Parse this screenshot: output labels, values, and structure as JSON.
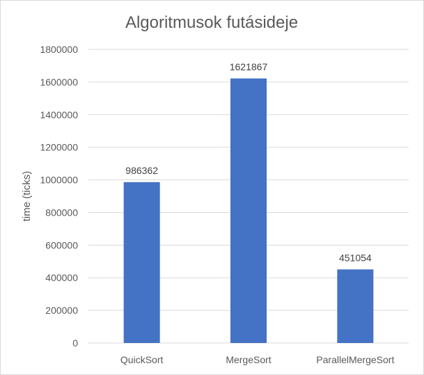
{
  "chart_data": {
    "type": "bar",
    "title": "Algoritmusok futásideje",
    "xlabel": "",
    "ylabel": "time (ticks)",
    "categories": [
      "QuickSort",
      "MergeSort",
      "ParallelMergeSort"
    ],
    "values": [
      986362,
      1621867,
      451054
    ],
    "data_labels": [
      "986362",
      "1621867",
      "451054"
    ],
    "ylim": [
      0,
      1800000
    ],
    "yticks": [
      "0",
      "200000",
      "400000",
      "600000",
      "800000",
      "1000000",
      "1200000",
      "1400000",
      "1600000",
      "1800000"
    ],
    "grid": true,
    "legend": "none",
    "bar_color": "#4472c4",
    "grid_color": "#d9d9d9"
  }
}
